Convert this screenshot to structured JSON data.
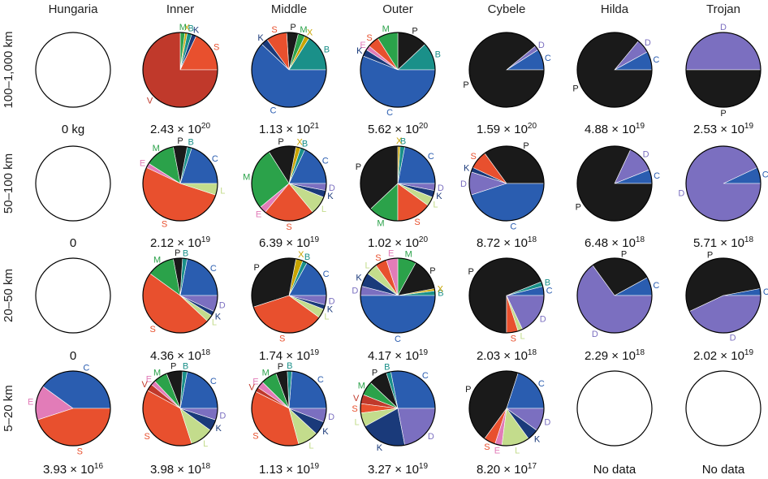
{
  "colors": {
    "S": "#e8502e",
    "V": "#c0392b",
    "C": "#2a5db0",
    "K": "#1a3a7a",
    "B": "#1a9089",
    "X": "#c8a400",
    "M": "#2ba24a",
    "L": "#c3dc8c",
    "E": "#e27cb8",
    "P": "#1a1a1a",
    "D": "#7b6fc0",
    "outline": "#000000"
  },
  "chart_data": {
    "type": "pie",
    "columns": [
      "Hungaria",
      "Inner",
      "Middle",
      "Outer",
      "Cybele",
      "Hilda",
      "Trojan"
    ],
    "rows": [
      "100–1,000 km",
      "50–100 km",
      "20–50 km",
      "5–20 km"
    ],
    "panels": [
      [
        {
          "mass": "0 kg",
          "slices": []
        },
        {
          "mass": "2.43 × 10",
          "exp": "20",
          "slices": [
            {
              "c": "S",
              "v": 0.18
            },
            {
              "c": "K",
              "v": 0.02
            },
            {
              "c": "B",
              "v": 0.02
            },
            {
              "c": "X",
              "v": 0.01
            },
            {
              "c": "M",
              "v": 0.02
            },
            {
              "c": "V",
              "v": 0.75
            }
          ]
        },
        {
          "mass": "1.13 × 10",
          "exp": "21",
          "slices": [
            {
              "c": "B",
              "v": 0.16
            },
            {
              "c": "X",
              "v": 0.02
            },
            {
              "c": "M",
              "v": 0.03
            },
            {
              "c": "P",
              "v": 0.05
            },
            {
              "c": "S",
              "v": 0.09
            },
            {
              "c": "K",
              "v": 0.03
            },
            {
              "c": "C",
              "v": 0.62
            }
          ]
        },
        {
          "mass": "5.62 × 10",
          "exp": "20",
          "slices": [
            {
              "c": "B",
              "v": 0.12
            },
            {
              "c": "P",
              "v": 0.13
            },
            {
              "c": "M",
              "v": 0.09
            },
            {
              "c": "S",
              "v": 0.05
            },
            {
              "c": "E",
              "v": 0.02
            },
            {
              "c": "K",
              "v": 0.03
            },
            {
              "c": "C",
              "v": 0.56
            }
          ]
        },
        {
          "mass": "1.59 × 10",
          "exp": "20",
          "slices": [
            {
              "c": "C",
              "v": 0.09
            },
            {
              "c": "D",
              "v": 0.02
            },
            {
              "c": "P",
              "v": 0.89
            }
          ]
        },
        {
          "mass": "4.88 × 10",
          "exp": "19",
          "slices": [
            {
              "c": "C",
              "v": 0.08
            },
            {
              "c": "D",
              "v": 0.06
            },
            {
              "c": "P",
              "v": 0.86
            }
          ]
        },
        {
          "mass": "2.53 × 10",
          "exp": "19",
          "slices": [
            {
              "c": "D",
              "v": 0.5
            },
            {
              "c": "P",
              "v": 0.5
            }
          ]
        }
      ],
      [
        {
          "mass": "0",
          "slices": []
        },
        {
          "mass": "2.12 × 10",
          "exp": "19",
          "slices": [
            {
              "c": "C",
              "v": 0.2
            },
            {
              "c": "B",
              "v": 0.02
            },
            {
              "c": "P",
              "v": 0.06
            },
            {
              "c": "M",
              "v": 0.13
            },
            {
              "c": "E",
              "v": 0.02
            },
            {
              "c": "S",
              "v": 0.52
            },
            {
              "c": "L",
              "v": 0.05
            }
          ]
        },
        {
          "mass": "6.39 × 10",
          "exp": "19",
          "slices": [
            {
              "c": "C",
              "v": 0.18
            },
            {
              "c": "B",
              "v": 0.02
            },
            {
              "c": "X",
              "v": 0.02
            },
            {
              "c": "P",
              "v": 0.12
            },
            {
              "c": "M",
              "v": 0.27
            },
            {
              "c": "E",
              "v": 0.03
            },
            {
              "c": "S",
              "v": 0.22
            },
            {
              "c": "L",
              "v": 0.08
            },
            {
              "c": "K",
              "v": 0.03
            },
            {
              "c": "D",
              "v": 0.03
            }
          ]
        },
        {
          "mass": "1.02 × 10",
          "exp": "20",
          "slices": [
            {
              "c": "C",
              "v": 0.22
            },
            {
              "c": "B",
              "v": 0.02
            },
            {
              "c": "X",
              "v": 0.01
            },
            {
              "c": "P",
              "v": 0.37
            },
            {
              "c": "M",
              "v": 0.13
            },
            {
              "c": "S",
              "v": 0.15
            },
            {
              "c": "L",
              "v": 0.04
            },
            {
              "c": "K",
              "v": 0.03
            },
            {
              "c": "D",
              "v": 0.03
            }
          ]
        },
        {
          "mass": "8.72 × 10",
          "exp": "18",
          "slices": [
            {
              "c": "P",
              "v": 0.35
            },
            {
              "c": "S",
              "v": 0.08
            },
            {
              "c": "K",
              "v": 0.02
            },
            {
              "c": "D",
              "v": 0.1
            },
            {
              "c": "C",
              "v": 0.45
            }
          ]
        },
        {
          "mass": "6.48 × 10",
          "exp": "18",
          "slices": [
            {
              "c": "C",
              "v": 0.06
            },
            {
              "c": "D",
              "v": 0.12
            },
            {
              "c": "P",
              "v": 0.82
            }
          ]
        },
        {
          "mass": "5.71 × 10",
          "exp": "18",
          "slices": [
            {
              "c": "C",
              "v": 0.07
            },
            {
              "c": "D",
              "v": 0.93
            }
          ]
        }
      ],
      [
        {
          "mass": "0",
          "slices": []
        },
        {
          "mass": "4.36 × 10",
          "exp": "18",
          "slices": [
            {
              "c": "C",
              "v": 0.22
            },
            {
              "c": "B",
              "v": 0.02
            },
            {
              "c": "P",
              "v": 0.04
            },
            {
              "c": "M",
              "v": 0.12
            },
            {
              "c": "S",
              "v": 0.48
            },
            {
              "c": "L",
              "v": 0.03
            },
            {
              "c": "K",
              "v": 0.02
            },
            {
              "c": "D",
              "v": 0.07
            }
          ]
        },
        {
          "mass": "1.74 × 10",
          "exp": "19",
          "slices": [
            {
              "c": "C",
              "v": 0.17
            },
            {
              "c": "B",
              "v": 0.02
            },
            {
              "c": "X",
              "v": 0.03
            },
            {
              "c": "P",
              "v": 0.33
            },
            {
              "c": "S",
              "v": 0.35
            },
            {
              "c": "L",
              "v": 0.04
            },
            {
              "c": "K",
              "v": 0.02
            },
            {
              "c": "D",
              "v": 0.04
            }
          ]
        },
        {
          "mass": "4.17 × 10",
          "exp": "19",
          "slices": [
            {
              "c": "B",
              "v": 0.02
            },
            {
              "c": "X",
              "v": 0.01
            },
            {
              "c": "P",
              "v": 0.14
            },
            {
              "c": "M",
              "v": 0.08
            },
            {
              "c": "E",
              "v": 0.05
            },
            {
              "c": "S",
              "v": 0.05
            },
            {
              "c": "L",
              "v": 0.05
            },
            {
              "c": "K",
              "v": 0.06
            },
            {
              "c": "D",
              "v": 0.04
            },
            {
              "c": "C",
              "v": 0.5
            }
          ]
        },
        {
          "mass": "2.03 × 10",
          "exp": "18",
          "slices": [
            {
              "c": "C",
              "v": 0.04
            },
            {
              "c": "B",
              "v": 0.02
            },
            {
              "c": "P",
              "v": 0.69
            },
            {
              "c": "S",
              "v": 0.05
            },
            {
              "c": "L",
              "v": 0.02
            },
            {
              "c": "D",
              "v": 0.18
            }
          ]
        },
        {
          "mass": "2.29 × 10",
          "exp": "18",
          "slices": [
            {
              "c": "C",
              "v": 0.08
            },
            {
              "c": "P",
              "v": 0.27
            },
            {
              "c": "D",
              "v": 0.65
            }
          ]
        },
        {
          "mass": "2.02 × 10",
          "exp": "19",
          "slices": [
            {
              "c": "C",
              "v": 0.03
            },
            {
              "c": "P",
              "v": 0.54
            },
            {
              "c": "D",
              "v": 0.43
            }
          ]
        }
      ],
      [
        {
          "mass": "3.93 × 10",
          "exp": "16",
          "slices": [
            {
              "c": "C",
              "v": 0.4
            },
            {
              "c": "E",
              "v": 0.15
            },
            {
              "c": "S",
              "v": 0.45
            }
          ]
        },
        {
          "mass": "3.98 × 10",
          "exp": "18",
          "slices": [
            {
              "c": "C",
              "v": 0.22
            },
            {
              "c": "B",
              "v": 0.02
            },
            {
              "c": "P",
              "v": 0.07
            },
            {
              "c": "M",
              "v": 0.06
            },
            {
              "c": "E",
              "v": 0.02
            },
            {
              "c": "V",
              "v": 0.03
            },
            {
              "c": "S",
              "v": 0.38
            },
            {
              "c": "L",
              "v": 0.1
            },
            {
              "c": "K",
              "v": 0.05
            },
            {
              "c": "D",
              "v": 0.05
            }
          ]
        },
        {
          "mass": "1.13 × 10",
          "exp": "19",
          "slices": [
            {
              "c": "C",
              "v": 0.24
            },
            {
              "c": "B",
              "v": 0.02
            },
            {
              "c": "P",
              "v": 0.05
            },
            {
              "c": "M",
              "v": 0.07
            },
            {
              "c": "E",
              "v": 0.03
            },
            {
              "c": "V",
              "v": 0.02
            },
            {
              "c": "S",
              "v": 0.37
            },
            {
              "c": "L",
              "v": 0.09
            },
            {
              "c": "K",
              "v": 0.06
            },
            {
              "c": "D",
              "v": 0.06
            }
          ]
        },
        {
          "mass": "3.27 × 10",
          "exp": "19",
          "slices": [
            {
              "c": "C",
              "v": 0.28
            },
            {
              "c": "B",
              "v": 0.02
            },
            {
              "c": "P",
              "v": 0.08
            },
            {
              "c": "M",
              "v": 0.06
            },
            {
              "c": "V",
              "v": 0.04
            },
            {
              "c": "S",
              "v": 0.04
            },
            {
              "c": "L",
              "v": 0.06
            },
            {
              "c": "K",
              "v": 0.2
            },
            {
              "c": "D",
              "v": 0.22
            }
          ]
        },
        {
          "mass": "8.20 × 10",
          "exp": "17",
          "slices": [
            {
              "c": "C",
              "v": 0.2
            },
            {
              "c": "P",
              "v": 0.45
            },
            {
              "c": "S",
              "v": 0.05
            },
            {
              "c": "E",
              "v": 0.03
            },
            {
              "c": "L",
              "v": 0.12
            },
            {
              "c": "K",
              "v": 0.05
            },
            {
              "c": "D",
              "v": 0.1
            }
          ]
        },
        {
          "mass": "No data",
          "slices": []
        },
        {
          "mass": "No data",
          "slices": []
        }
      ]
    ]
  }
}
